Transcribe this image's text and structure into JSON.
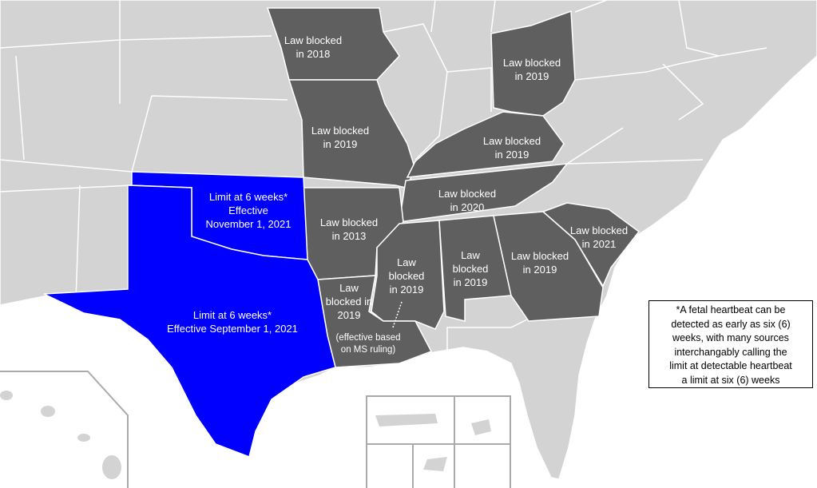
{
  "colors": {
    "blocked": "#5f5f5f",
    "six_week_limit": "#0000ff",
    "other_states": "#d3d3d3",
    "water": "#ffffff",
    "border": "#ffffff"
  },
  "states": {
    "iowa": {
      "lines": [
        "Law blocked",
        "in 2018"
      ]
    },
    "ohio": {
      "lines": [
        "Law blocked",
        "in 2019"
      ]
    },
    "missouri": {
      "lines": [
        "Law blocked",
        "in 2019"
      ]
    },
    "kentucky": {
      "lines": [
        "Law blocked",
        "in 2019"
      ]
    },
    "tennessee": {
      "lines": [
        "Law blocked",
        "in 2020"
      ]
    },
    "arkansas": {
      "lines": [
        "Law blocked",
        "in 2013"
      ]
    },
    "south_carolina": {
      "lines": [
        "Law blocked",
        "in 2021"
      ]
    },
    "georgia": {
      "lines": [
        "Law blocked",
        "in 2019"
      ]
    },
    "alabama": {
      "lines": [
        "Law",
        "blocked",
        "in 2019"
      ]
    },
    "mississippi": {
      "lines": [
        "Law",
        "blocked",
        "in 2019"
      ]
    },
    "louisiana": {
      "lines": [
        "Law",
        "blocked in",
        "2019"
      ],
      "note": [
        "(effective based",
        "on MS ruling)"
      ]
    },
    "oklahoma": {
      "lines": [
        "Limit at 6 weeks*",
        "Effective",
        "November 1, 2021"
      ]
    },
    "texas": {
      "lines": [
        "Limit at 6 weeks*",
        "Effective September 1, 2021"
      ]
    }
  },
  "footnote": [
    "*A fetal heartbeat can be",
    "detected as early as six (6)",
    "weeks, with many sources",
    "interchangably calling the",
    "limit at detectable heartbeat",
    "a limit at six (6) weeks"
  ]
}
